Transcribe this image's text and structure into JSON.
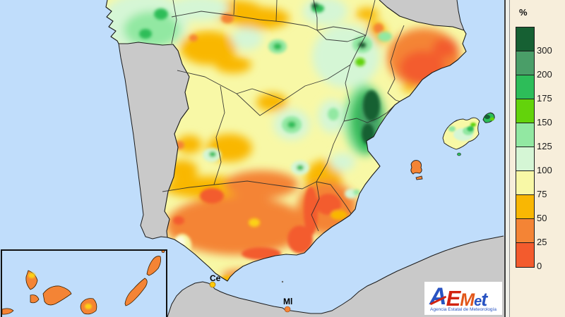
{
  "legend": {
    "unit": "%",
    "entries": [
      {
        "color": "#166033",
        "label": "300"
      },
      {
        "color": "#4a9e68",
        "label": "200"
      },
      {
        "color": "#2dbd59",
        "label": "175"
      },
      {
        "color": "#63d30b",
        "label": "150"
      },
      {
        "color": "#92e8a2",
        "label": "125"
      },
      {
        "color": "#d5f6d5",
        "label": "100"
      },
      {
        "color": "#f8f8a6",
        "label": "75"
      },
      {
        "color": "#f9b703",
        "label": "50"
      },
      {
        "color": "#f48435",
        "label": "25"
      },
      {
        "color": "#f35b2d",
        "label": "0"
      }
    ]
  },
  "map": {
    "sea_color": "#c0ddfb",
    "neighbor_land_color": "#c9c9c9",
    "spain_base_color": "#f8f8a6",
    "labels": {
      "ceuta": "Ce",
      "melilla": "Ml"
    },
    "ceuta_dot_color": "#fcc70a",
    "melilla_dot_color": "#f48435"
  },
  "logo": {
    "letters": [
      {
        "char": "A",
        "color": "#2853c2"
      },
      {
        "char": "E",
        "color": "#d22310"
      },
      {
        "char": "M",
        "color": "#e2571a"
      },
      {
        "char": "e",
        "color": "#2853c2"
      },
      {
        "char": "t",
        "color": "#2853c2"
      }
    ],
    "subtitle": "Agencia Estatal de Meteorología"
  }
}
